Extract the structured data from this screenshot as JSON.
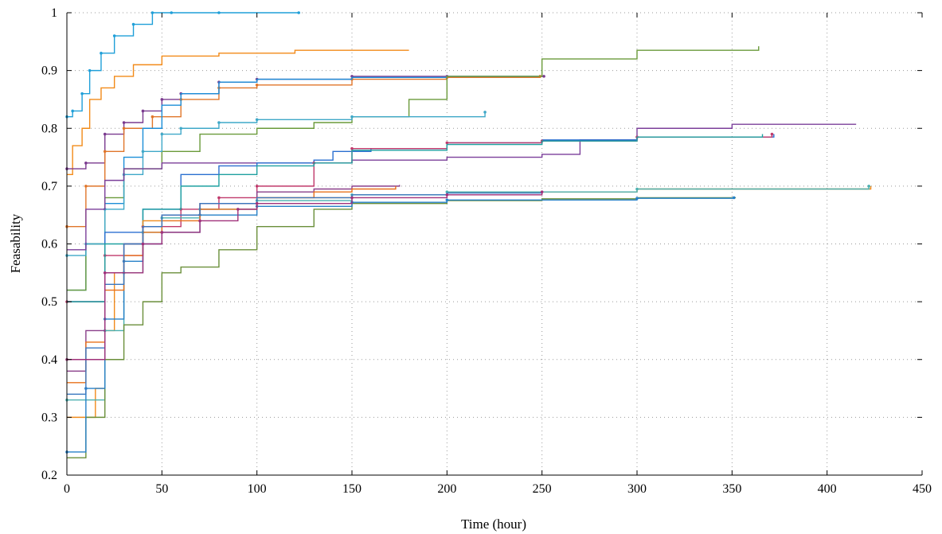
{
  "chart_data": {
    "type": "line",
    "title": "",
    "xlabel": "Time (hour)",
    "ylabel": "Feasability",
    "xlim": [
      0,
      450
    ],
    "ylim": [
      0.2,
      1.0
    ],
    "x_ticks": [
      0,
      50,
      100,
      150,
      200,
      250,
      300,
      350,
      400,
      450
    ],
    "x_tick_labels": [
      "0",
      "50",
      "100",
      "150",
      "200",
      "250",
      "300",
      "350",
      "400",
      "450"
    ],
    "y_ticks": [
      0.2,
      0.3,
      0.4,
      0.5,
      0.6,
      0.7,
      0.8,
      0.9,
      1.0
    ],
    "y_tick_labels": [
      "0.2",
      "0.3",
      "0.4",
      "0.5",
      "0.6",
      "0.7",
      "0.8",
      "0.9",
      "1"
    ],
    "grid": "dotted",
    "legend": "none",
    "series": [
      {
        "color": "#1f9fd8",
        "marker": true,
        "x": [
          0,
          3,
          8,
          12,
          18,
          25,
          35,
          45,
          55,
          80,
          122
        ],
        "y": [
          0.82,
          0.83,
          0.86,
          0.9,
          0.93,
          0.96,
          0.98,
          1.0,
          1.0,
          1.0,
          1.0
        ]
      },
      {
        "color": "#f28a18",
        "marker": false,
        "x": [
          0,
          3,
          8,
          12,
          18,
          25,
          35,
          50,
          80,
          120,
          180
        ],
        "y": [
          0.72,
          0.77,
          0.8,
          0.85,
          0.87,
          0.89,
          0.91,
          0.925,
          0.93,
          0.935,
          0.935
        ]
      },
      {
        "color": "#7a3a8f",
        "marker": true,
        "x": [
          0,
          10,
          20,
          30,
          40,
          50,
          60,
          80,
          100,
          150,
          200,
          251
        ],
        "y": [
          0.73,
          0.74,
          0.79,
          0.81,
          0.83,
          0.85,
          0.86,
          0.88,
          0.885,
          0.89,
          0.89,
          0.89
        ]
      },
      {
        "color": "#e0762a",
        "marker": true,
        "x": [
          0,
          10,
          20,
          30,
          45,
          60,
          80,
          100,
          150,
          200,
          249
        ],
        "y": [
          0.63,
          0.7,
          0.76,
          0.8,
          0.82,
          0.85,
          0.87,
          0.875,
          0.885,
          0.888,
          0.89
        ]
      },
      {
        "color": "#1b8ed8",
        "marker": false,
        "x": [
          0,
          10,
          20,
          30,
          40,
          50,
          60,
          80,
          100,
          150,
          200,
          248
        ],
        "y": [
          0.52,
          0.6,
          0.67,
          0.75,
          0.8,
          0.84,
          0.86,
          0.88,
          0.885,
          0.888,
          0.89,
          0.89
        ]
      },
      {
        "color": "#6a9a3a",
        "marker": false,
        "x": [
          0,
          10,
          20,
          30,
          50,
          70,
          100,
          130,
          150,
          180,
          200,
          250,
          300,
          364
        ],
        "y": [
          0.52,
          0.6,
          0.68,
          0.73,
          0.76,
          0.79,
          0.8,
          0.81,
          0.82,
          0.85,
          0.89,
          0.92,
          0.935,
          0.942
        ]
      },
      {
        "color": "#3fa8c8",
        "marker": true,
        "x": [
          0,
          10,
          20,
          30,
          40,
          50,
          60,
          80,
          100,
          150,
          220
        ],
        "y": [
          0.58,
          0.6,
          0.66,
          0.72,
          0.76,
          0.79,
          0.8,
          0.81,
          0.815,
          0.82,
          0.828
        ]
      },
      {
        "color": "#7b3f9a",
        "marker": false,
        "x": [
          0,
          10,
          20,
          30,
          50,
          70,
          100,
          150,
          200,
          250,
          270,
          300,
          350,
          415
        ],
        "y": [
          0.59,
          0.66,
          0.71,
          0.73,
          0.74,
          0.74,
          0.74,
          0.745,
          0.75,
          0.755,
          0.78,
          0.8,
          0.807,
          0.808
        ]
      },
      {
        "color": "#2a6fd0",
        "marker": false,
        "x": [
          0,
          20,
          40,
          60,
          80,
          100,
          120,
          130,
          140,
          160,
          200,
          250,
          300,
          372
        ],
        "y": [
          0.5,
          0.62,
          0.66,
          0.72,
          0.735,
          0.74,
          0.74,
          0.745,
          0.76,
          0.765,
          0.775,
          0.78,
          0.785,
          0.79
        ]
      },
      {
        "color": "#c0396b",
        "marker": true,
        "x": [
          0,
          20,
          40,
          60,
          80,
          100,
          130,
          150,
          200,
          250,
          300,
          371
        ],
        "y": [
          0.5,
          0.58,
          0.63,
          0.66,
          0.68,
          0.7,
          0.74,
          0.765,
          0.775,
          0.778,
          0.785,
          0.79
        ]
      },
      {
        "color": "#1fa0a0",
        "marker": false,
        "x": [
          0,
          20,
          40,
          60,
          80,
          100,
          130,
          150,
          200,
          250,
          300,
          366
        ],
        "y": [
          0.5,
          0.6,
          0.66,
          0.7,
          0.72,
          0.735,
          0.74,
          0.762,
          0.772,
          0.778,
          0.785,
          0.79
        ]
      },
      {
        "color": "#f08a1c",
        "marker": false,
        "x": [
          0,
          10,
          15,
          20,
          25,
          30,
          40,
          50,
          70,
          100,
          150,
          200,
          300,
          423
        ],
        "y": [
          0.3,
          0.3,
          0.35,
          0.45,
          0.55,
          0.6,
          0.64,
          0.65,
          0.67,
          0.68,
          0.685,
          0.69,
          0.695,
          0.7
        ]
      },
      {
        "color": "#4ab0b0",
        "marker": true,
        "x": [
          0,
          20,
          30,
          40,
          50,
          70,
          100,
          150,
          200,
          300,
          422
        ],
        "y": [
          0.33,
          0.45,
          0.55,
          0.62,
          0.645,
          0.66,
          0.675,
          0.685,
          0.69,
          0.695,
          0.7
        ]
      },
      {
        "color": "#6a8f3a",
        "marker": false,
        "x": [
          0,
          10,
          20,
          30,
          40,
          50,
          60,
          80,
          100,
          130,
          150,
          200,
          250,
          300,
          352
        ],
        "y": [
          0.23,
          0.3,
          0.4,
          0.46,
          0.5,
          0.55,
          0.56,
          0.59,
          0.63,
          0.66,
          0.67,
          0.675,
          0.678,
          0.68,
          0.68
        ]
      },
      {
        "color": "#2680c8",
        "marker": true,
        "x": [
          0,
          10,
          20,
          30,
          40,
          50,
          70,
          100,
          150,
          200,
          300,
          351
        ],
        "y": [
          0.24,
          0.35,
          0.47,
          0.57,
          0.6,
          0.62,
          0.65,
          0.665,
          0.672,
          0.676,
          0.679,
          0.68
        ]
      },
      {
        "color": "#8a3f8a",
        "marker": false,
        "x": [
          0,
          10,
          20,
          30,
          40,
          50,
          70,
          100,
          130,
          150,
          175
        ],
        "y": [
          0.38,
          0.45,
          0.55,
          0.6,
          0.63,
          0.65,
          0.67,
          0.69,
          0.695,
          0.7,
          0.702
        ]
      },
      {
        "color": "#e8701a",
        "marker": false,
        "x": [
          0,
          10,
          20,
          30,
          40,
          50,
          70,
          100,
          130,
          150,
          173
        ],
        "y": [
          0.36,
          0.43,
          0.52,
          0.58,
          0.62,
          0.64,
          0.66,
          0.68,
          0.69,
          0.695,
          0.7
        ]
      },
      {
        "color": "#3a78c0",
        "marker": false,
        "x": [
          0,
          10,
          20,
          30,
          40,
          50,
          70,
          100,
          150,
          200,
          250
        ],
        "y": [
          0.34,
          0.42,
          0.53,
          0.6,
          0.63,
          0.65,
          0.67,
          0.68,
          0.685,
          0.688,
          0.69
        ]
      },
      {
        "color": "#a0307a",
        "marker": true,
        "x": [
          0,
          20,
          40,
          50,
          70,
          90,
          100,
          150,
          200,
          250
        ],
        "y": [
          0.4,
          0.55,
          0.6,
          0.62,
          0.64,
          0.66,
          0.67,
          0.68,
          0.685,
          0.69
        ]
      }
    ]
  }
}
